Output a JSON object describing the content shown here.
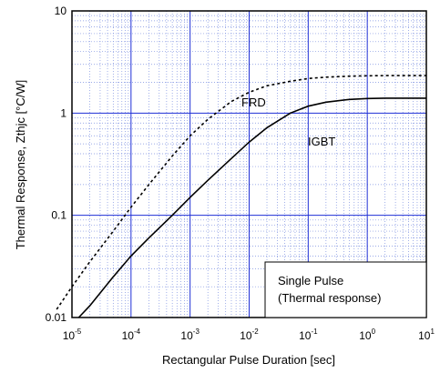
{
  "chart_data": {
    "type": "line",
    "x_scale": "log",
    "y_scale": "log",
    "xlim": [
      1e-05,
      10
    ],
    "ylim": [
      0.01,
      10
    ],
    "xlabel": "Rectangular Pulse Duration [sec]",
    "ylabel": "Thermal Response, Zthjc [°C/W]",
    "x_ticks": [
      {
        "mantissa": "10",
        "exp": "-5",
        "value": 1e-05
      },
      {
        "mantissa": "10",
        "exp": "-4",
        "value": 0.0001
      },
      {
        "mantissa": "10",
        "exp": "-3",
        "value": 0.001
      },
      {
        "mantissa": "10",
        "exp": "-2",
        "value": 0.01
      },
      {
        "mantissa": "10",
        "exp": "-1",
        "value": 0.1
      },
      {
        "mantissa": "10",
        "exp": "0",
        "value": 1
      },
      {
        "mantissa": "10",
        "exp": "1",
        "value": 10
      }
    ],
    "y_ticks": [
      {
        "label": "0.01",
        "value": 0.01
      },
      {
        "label": "0.1",
        "value": 0.1
      },
      {
        "label": "1",
        "value": 1
      },
      {
        "label": "10",
        "value": 10
      }
    ],
    "grid": true,
    "series": [
      {
        "name": "FRD",
        "style": "dotted",
        "color": "#000000",
        "x": [
          5.5e-06,
          1e-05,
          2e-05,
          5e-05,
          0.0001,
          0.0002,
          0.0005,
          0.001,
          0.002,
          0.005,
          0.01,
          0.02,
          0.05,
          0.1,
          0.2,
          0.5,
          1,
          2,
          5,
          10
        ],
        "y": [
          0.012,
          0.02,
          0.035,
          0.07,
          0.12,
          0.2,
          0.38,
          0.6,
          0.87,
          1.3,
          1.6,
          1.85,
          2.05,
          2.18,
          2.25,
          2.3,
          2.32,
          2.33,
          2.33,
          2.33
        ]
      },
      {
        "name": "IGBT",
        "style": "solid",
        "color": "#000000",
        "x": [
          1.3e-05,
          2e-05,
          5e-05,
          0.0001,
          0.0002,
          0.0005,
          0.001,
          0.002,
          0.005,
          0.01,
          0.02,
          0.05,
          0.1,
          0.2,
          0.5,
          1,
          2,
          5,
          10
        ],
        "y": [
          0.01,
          0.013,
          0.025,
          0.04,
          0.06,
          0.1,
          0.15,
          0.22,
          0.36,
          0.52,
          0.72,
          1.0,
          1.17,
          1.28,
          1.36,
          1.39,
          1.4,
          1.4,
          1.4
        ]
      }
    ],
    "annotations": [
      {
        "text": "FRD",
        "series": "FRD"
      },
      {
        "text": "IGBT",
        "series": "IGBT"
      }
    ],
    "legend_box": {
      "line1": "Single Pulse",
      "line2": "(Thermal response)",
      "placement": "bottom-right"
    }
  }
}
